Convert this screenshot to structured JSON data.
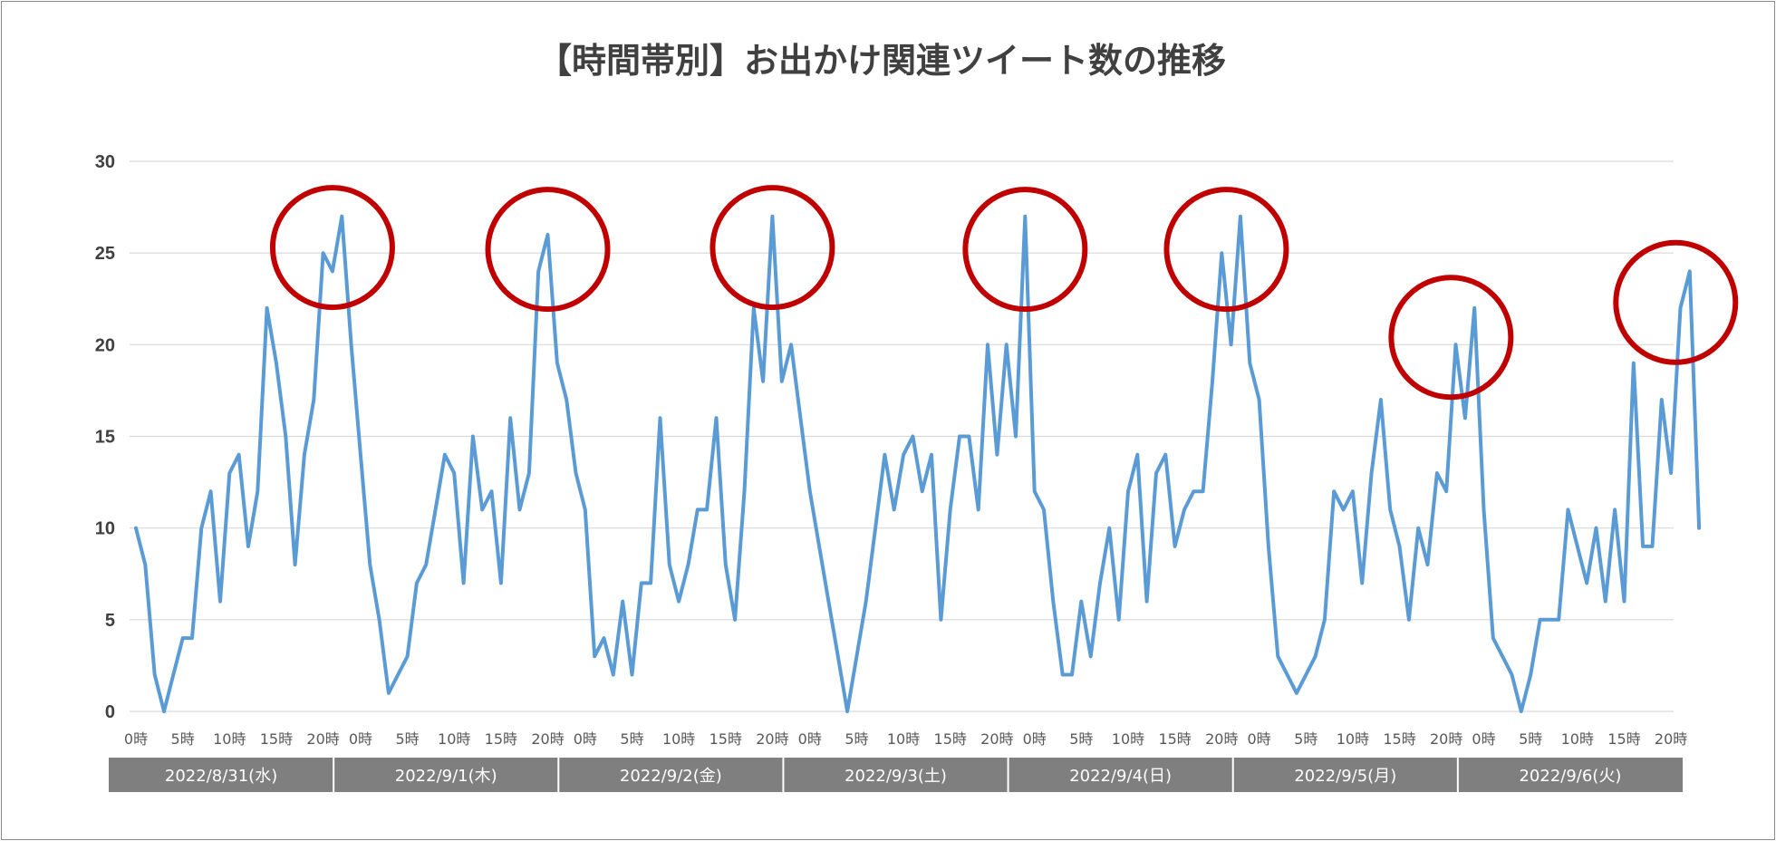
{
  "chart_data": {
    "type": "line",
    "title": "【時間帯別】お出かけ関連ツイート数の推移",
    "xlabel": "",
    "ylabel": "",
    "ylim": [
      0,
      30
    ],
    "yticks": [
      0,
      5,
      10,
      15,
      20,
      25,
      30
    ],
    "grid": true,
    "legend": "none",
    "x_tick_labels": [
      "0時",
      "5時",
      "10時",
      "15時",
      "20時"
    ],
    "x_tick_hours": [
      0,
      5,
      10,
      15,
      20
    ],
    "days": [
      "2022/8/31(水)",
      "2022/9/1(木)",
      "2022/9/2(金)",
      "2022/9/3(土)",
      "2022/9/4(日)",
      "2022/9/5(月)",
      "2022/9/6(火)"
    ],
    "series": [
      {
        "color": "#5b9bd5",
        "values": [
          10,
          8,
          2,
          0,
          2,
          4,
          4,
          10,
          12,
          6,
          13,
          14,
          9,
          12,
          22,
          19,
          15,
          8,
          14,
          17,
          25,
          24,
          27,
          20,
          14,
          8,
          5,
          1,
          2,
          3,
          7,
          8,
          11,
          14,
          13,
          7,
          15,
          11,
          12,
          7,
          16,
          11,
          13,
          24,
          26,
          19,
          17,
          13,
          11,
          3,
          4,
          2,
          6,
          2,
          7,
          7,
          16,
          8,
          6,
          8,
          11,
          11,
          16,
          8,
          5,
          12,
          22,
          18,
          27,
          18,
          20,
          16,
          12,
          9,
          6,
          3,
          0,
          3,
          6,
          10,
          14,
          11,
          14,
          15,
          12,
          14,
          5,
          11,
          15,
          15,
          11,
          20,
          14,
          20,
          15,
          27,
          12,
          11,
          6,
          2,
          2,
          6,
          3,
          7,
          10,
          5,
          12,
          14,
          6,
          13,
          14,
          9,
          11,
          12,
          12,
          18,
          25,
          20,
          27,
          19,
          17,
          9,
          3,
          2,
          1,
          2,
          3,
          5,
          12,
          11,
          12,
          7,
          13,
          17,
          11,
          9,
          5,
          10,
          8,
          13,
          12,
          20,
          16,
          22,
          11,
          4,
          3,
          2,
          0,
          2,
          5,
          5,
          5,
          11,
          9,
          7,
          10,
          6,
          11,
          6,
          19,
          9,
          9,
          17,
          13,
          22,
          24,
          10
        ]
      }
    ],
    "annotations": [
      {
        "shape": "circle",
        "color": "#c00000",
        "day": 0,
        "hour": 21,
        "value": 25.3
      },
      {
        "shape": "circle",
        "color": "#c00000",
        "day": 1,
        "hour": 20,
        "value": 25.2
      },
      {
        "shape": "circle",
        "color": "#c00000",
        "day": 2,
        "hour": 20,
        "value": 25.3
      },
      {
        "shape": "circle",
        "color": "#c00000",
        "day": 3,
        "hour": 23,
        "value": 25.2
      },
      {
        "shape": "circle",
        "color": "#c00000",
        "day": 4,
        "hour": 20.5,
        "value": 25.2
      },
      {
        "shape": "circle",
        "color": "#c00000",
        "day": 5,
        "hour": 20.5,
        "value": 20.4
      },
      {
        "shape": "circle",
        "color": "#c00000",
        "day": 6,
        "hour": 20.5,
        "value": 22.3
      }
    ]
  }
}
